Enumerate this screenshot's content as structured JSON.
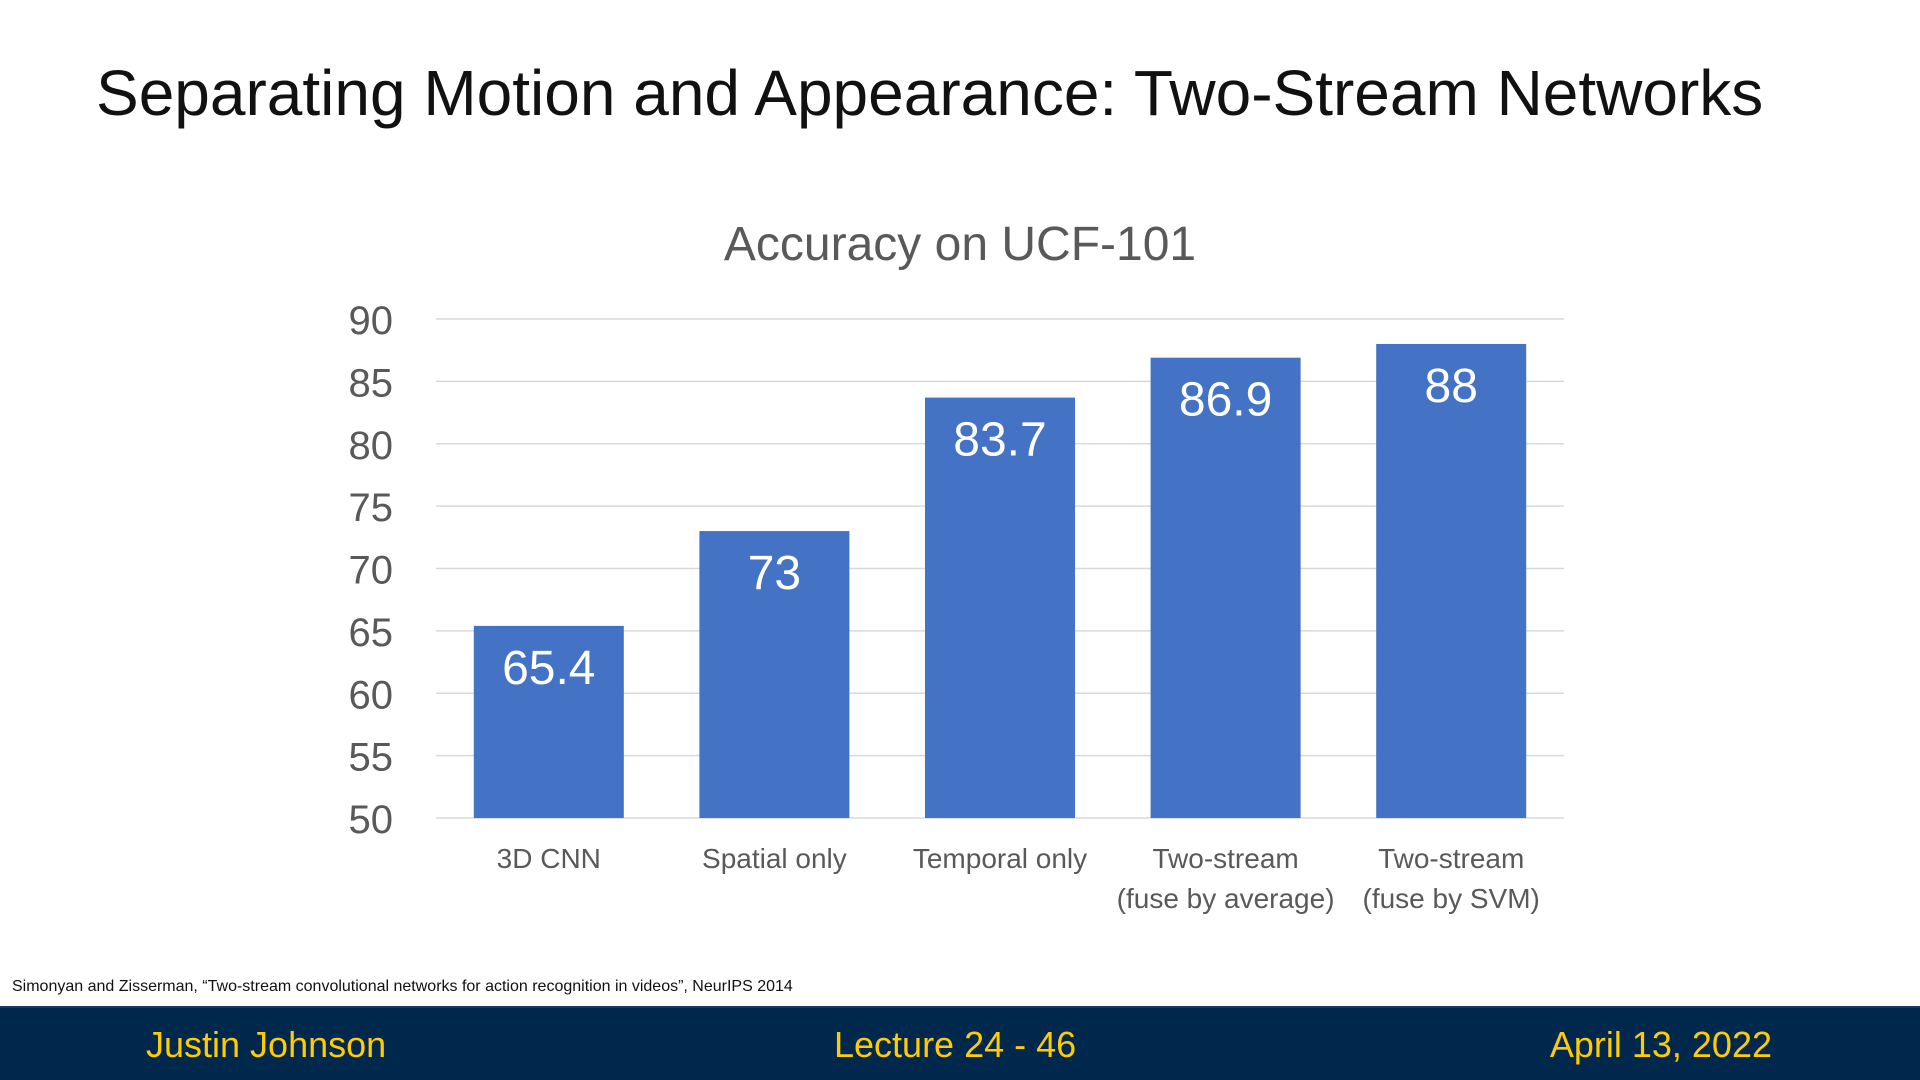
{
  "slide": {
    "title": "Separating Motion and Appearance: Two-Stream Networks",
    "citation": "Simonyan and Zisserman, “Two-stream convolutional networks for action recognition in videos”, NeurIPS 2014"
  },
  "footer": {
    "author": "Justin Johnson",
    "lecture": "Lecture 24 -    46",
    "date": "April 13, 2022"
  },
  "chart_data": {
    "type": "bar",
    "title": "Accuracy on UCF-101",
    "xlabel": "",
    "ylabel": "",
    "categories": [
      [
        "3D CNN"
      ],
      [
        "Spatial only"
      ],
      [
        "Temporal only"
      ],
      [
        "Two-stream",
        "(fuse by average)"
      ],
      [
        "Two-stream",
        "(fuse by SVM)"
      ]
    ],
    "values": [
      65.4,
      73,
      83.7,
      86.9,
      88
    ],
    "value_labels": [
      "65.4",
      "73",
      "83.7",
      "86.9",
      "88"
    ],
    "ylim": [
      50,
      90
    ],
    "yticks": [
      50,
      55,
      60,
      65,
      70,
      75,
      80,
      85,
      90
    ],
    "grid": true,
    "legend": "none",
    "colors": {
      "bar": "#4472c4",
      "grid": "#d9d9d9",
      "axis_text": "#595959",
      "value_label": "#ffffff"
    }
  }
}
